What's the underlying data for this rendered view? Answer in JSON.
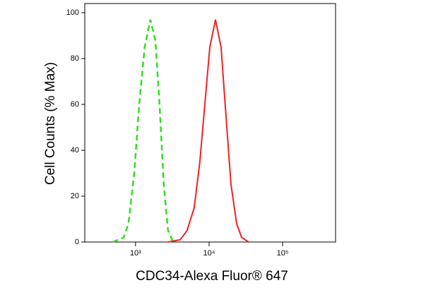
{
  "chart_data": {
    "type": "line",
    "x_label": "CDC34-Alexa Fluor® 647",
    "y_label": "Cell Counts (% Max)",
    "x_scale": "log",
    "xlim": [
      204,
      525000
    ],
    "ylim": [
      0,
      104
    ],
    "xticks": [
      {
        "value": 1000,
        "label": "10³"
      },
      {
        "value": 10000,
        "label": "10⁴"
      },
      {
        "value": 100000,
        "label": "10⁵"
      }
    ],
    "yticks": [
      0,
      20,
      40,
      60,
      80,
      100
    ],
    "series": [
      {
        "color": "#33dd22",
        "dashed": true,
        "x": [
          490,
          690,
          800,
          960,
          1120,
          1330,
          1590,
          1860,
          2120,
          2420,
          2770,
          3240
        ],
        "values": [
          0,
          2,
          8,
          30,
          60,
          85,
          97,
          88,
          60,
          25,
          5,
          0
        ]
      },
      {
        "color": "#ee2222",
        "dashed": false,
        "x": [
          2770,
          4040,
          5020,
          6280,
          7500,
          8750,
          10230,
          12220,
          14560,
          17000,
          19860,
          23700,
          27700,
          34500
        ],
        "values": [
          0,
          1,
          5,
          15,
          35,
          60,
          85,
          97,
          85,
          55,
          25,
          8,
          2,
          0
        ]
      }
    ]
  }
}
